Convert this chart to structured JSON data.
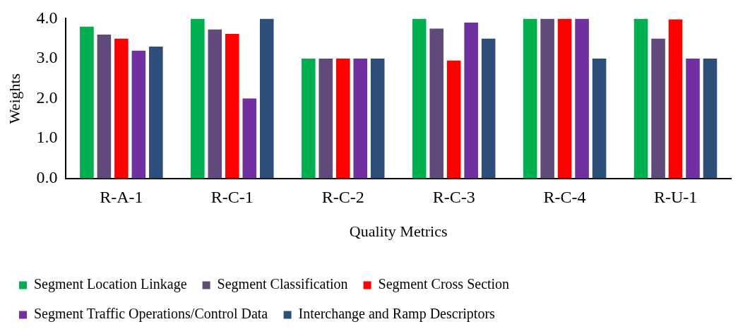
{
  "chart_data": {
    "type": "bar",
    "xlabel": "Quality Metrics",
    "ylabel": "Weights",
    "categories": [
      "R-A-1",
      "R-C-1",
      "R-C-2",
      "R-C-3",
      "R-C-4",
      "R-U-1"
    ],
    "series": [
      {
        "name": "Segment Location Linkage",
        "color": "#00b050",
        "values": [
          3.8,
          4.0,
          3.0,
          4.0,
          4.0,
          4.0
        ]
      },
      {
        "name": "Segment Classification",
        "color": "#604a7b",
        "values": [
          3.6,
          3.73,
          3.0,
          3.75,
          4.0,
          3.5
        ]
      },
      {
        "name": "Segment Cross Section",
        "color": "#ff0000",
        "values": [
          3.5,
          3.62,
          3.0,
          2.95,
          4.0,
          3.98
        ]
      },
      {
        "name": "Segment Traffic Operations/Control Data",
        "color": "#7030a0",
        "values": [
          3.2,
          2.0,
          3.0,
          3.9,
          4.0,
          3.0
        ]
      },
      {
        "name": "Interchange and Ramp Descriptors",
        "color": "#2e4e7a",
        "values": [
          3.3,
          4.0,
          3.0,
          3.5,
          3.0,
          3.0
        ]
      }
    ],
    "ylim": [
      0,
      4
    ],
    "yticks": [
      {
        "value": 0,
        "label": "0.0"
      },
      {
        "value": 1,
        "label": "1.0"
      },
      {
        "value": 2,
        "label": "2.0"
      },
      {
        "value": 3,
        "label": "3.0"
      },
      {
        "value": 4,
        "label": "4.0"
      }
    ],
    "grid": false,
    "legend": "bottom"
  }
}
